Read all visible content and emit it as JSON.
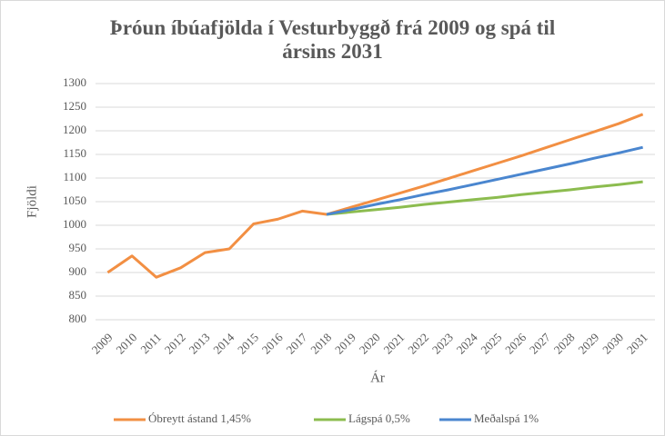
{
  "chart_data": {
    "type": "line",
    "title": "Þróun íbúafjölda í Vesturbyggð frá 2009 og spá til ársins 2031",
    "x_label": "Ár",
    "y_label": "Fjöldi",
    "categories": [
      "2009",
      "2010",
      "2011",
      "2012",
      "2013",
      "2014",
      "2015",
      "2016",
      "2017",
      "2018",
      "2019",
      "2020",
      "2021",
      "2022",
      "2023",
      "2024",
      "2025",
      "2026",
      "2027",
      "2028",
      "2029",
      "2030",
      "2031"
    ],
    "series": [
      {
        "name": "Óbreytt ástand 1,45%",
        "color": "#f28f43",
        "values": [
          900,
          935,
          890,
          910,
          942,
          950,
          1003,
          1013,
          1030,
          1023,
          1038,
          1053,
          1068,
          1083,
          1099,
          1115,
          1131,
          1147,
          1164,
          1181,
          1198,
          1215,
          1235
        ]
      },
      {
        "name": "Lágspá 0,5%",
        "color": "#8cbc4f",
        "values": [
          null,
          null,
          null,
          null,
          null,
          null,
          null,
          null,
          null,
          1023,
          1028,
          1033,
          1038,
          1044,
          1049,
          1054,
          1059,
          1065,
          1070,
          1075,
          1081,
          1086,
          1092
        ]
      },
      {
        "name": "Meðalspá 1%",
        "color": "#4a86cf",
        "values": [
          null,
          null,
          null,
          null,
          null,
          null,
          null,
          null,
          null,
          1023,
          1033,
          1044,
          1054,
          1065,
          1075,
          1086,
          1097,
          1108,
          1119,
          1130,
          1142,
          1153,
          1165
        ]
      }
    ],
    "ylim": [
      800,
      1300
    ],
    "yticks": [
      800,
      850,
      900,
      950,
      1000,
      1050,
      1100,
      1150,
      1200,
      1250,
      1300
    ],
    "grid": true,
    "legend": "bottom"
  }
}
